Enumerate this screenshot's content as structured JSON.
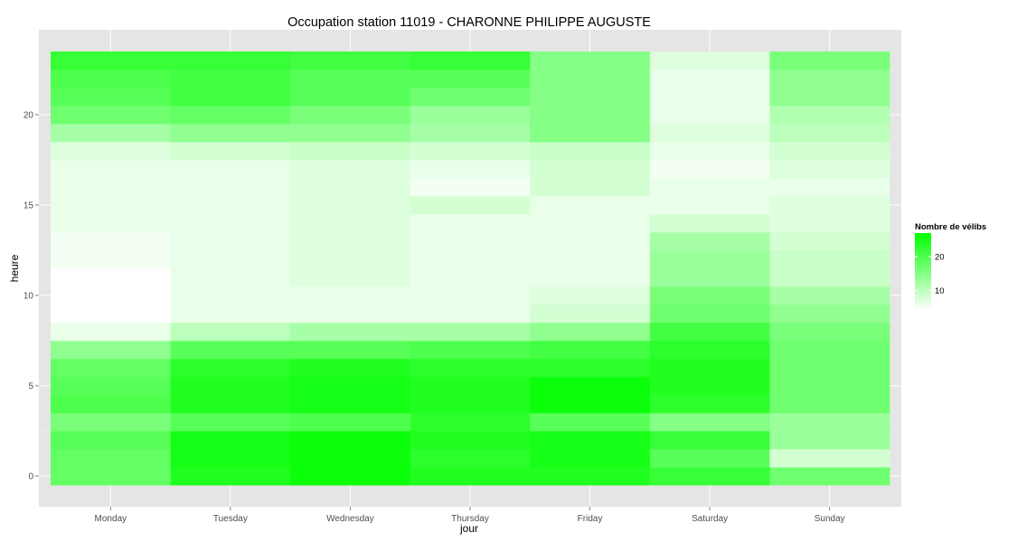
{
  "chart_data": {
    "type": "heatmap",
    "title": "Occupation station 11019 - CHARONNE PHILIPPE AUGUSTE",
    "xlabel": "jour",
    "ylabel": "heure",
    "categories": [
      "Monday",
      "Tuesday",
      "Wednesday",
      "Thursday",
      "Friday",
      "Saturday",
      "Sunday"
    ],
    "y_hours": [
      0,
      1,
      2,
      3,
      4,
      5,
      6,
      7,
      8,
      9,
      10,
      11,
      12,
      13,
      14,
      15,
      16,
      17,
      18,
      19,
      20,
      21,
      22,
      23
    ],
    "y_ticks": [
      0,
      5,
      10,
      15,
      20
    ],
    "ylim": [
      -0.5,
      23.5
    ],
    "grid": true,
    "legend": {
      "title": "Nombre de vélibs",
      "position": "right",
      "ticks": [
        10,
        20
      ],
      "min": 4,
      "max": 27,
      "low_color": "#ffffff",
      "high_color": "#00ff00"
    },
    "values": [
      [
        18,
        24,
        26,
        24,
        24,
        22,
        17
      ],
      [
        18,
        25,
        26,
        23,
        25,
        19,
        8
      ],
      [
        19,
        25,
        26,
        24,
        25,
        22,
        13
      ],
      [
        16,
        19,
        20,
        23,
        19,
        15,
        13
      ],
      [
        20,
        24,
        25,
        24,
        26,
        23,
        17
      ],
      [
        19,
        24,
        25,
        24,
        26,
        24,
        17
      ],
      [
        18,
        23,
        24,
        23,
        23,
        24,
        17
      ],
      [
        14,
        19,
        19,
        20,
        21,
        23,
        17
      ],
      [
        6,
        10,
        12,
        12,
        14,
        21,
        16
      ],
      [
        4,
        6,
        6,
        6,
        8,
        17,
        14
      ],
      [
        4,
        6,
        6,
        6,
        7,
        16,
        12
      ],
      [
        4,
        6,
        7,
        6,
        6,
        13,
        9
      ],
      [
        5,
        6,
        7,
        6,
        6,
        13,
        9
      ],
      [
        5,
        6,
        7,
        6,
        6,
        12,
        8
      ],
      [
        6,
        6,
        7,
        6,
        6,
        8,
        7
      ],
      [
        6,
        6,
        7,
        8,
        6,
        6,
        7
      ],
      [
        6,
        6,
        7,
        5,
        8,
        6,
        6
      ],
      [
        6,
        6,
        7,
        6,
        8,
        5,
        7
      ],
      [
        7,
        8,
        9,
        8,
        9,
        6,
        8
      ],
      [
        12,
        14,
        14,
        12,
        15,
        7,
        10
      ],
      [
        17,
        18,
        16,
        13,
        15,
        6,
        11
      ],
      [
        19,
        21,
        19,
        17,
        15,
        6,
        14
      ],
      [
        20,
        21,
        19,
        19,
        15,
        6,
        14
      ],
      [
        22,
        22,
        21,
        22,
        15,
        7,
        16
      ]
    ]
  }
}
